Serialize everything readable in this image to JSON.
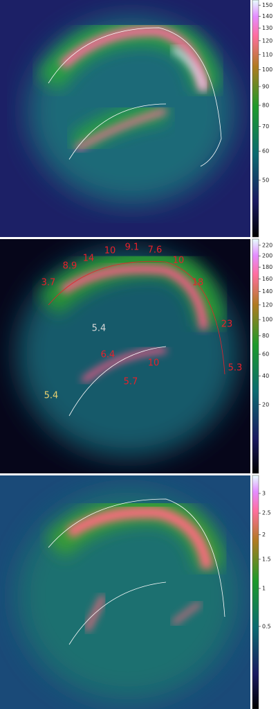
{
  "panels": [
    {
      "colorbar": {
        "scale": "log",
        "lim": [
          35,
          155
        ],
        "ticks": [
          150,
          140,
          130,
          120,
          110,
          100,
          90,
          80,
          70,
          60,
          50
        ]
      }
    },
    {
      "colorbar": {
        "scale": "sqrt",
        "lim": [
          0,
          232
        ],
        "ticks": [
          220,
          200,
          180,
          160,
          140,
          120,
          100,
          80,
          60,
          40,
          20
        ]
      },
      "annotations": [
        {
          "text": "3.7",
          "color": "#e8202a"
        },
        {
          "text": "8.9",
          "color": "#e8202a"
        },
        {
          "text": "14",
          "color": "#e8202a"
        },
        {
          "text": "10",
          "color": "#e8202a"
        },
        {
          "text": "9.1",
          "color": "#e8202a"
        },
        {
          "text": "7.6",
          "color": "#e8202a"
        },
        {
          "text": "10",
          "color": "#e8202a"
        },
        {
          "text": "18",
          "color": "#e8202a"
        },
        {
          "text": "23",
          "color": "#e8202a"
        },
        {
          "text": "5.3",
          "color": "#e8202a"
        },
        {
          "text": "10",
          "color": "#e8202a"
        },
        {
          "text": "5.7",
          "color": "#e8202a"
        },
        {
          "text": "6.4",
          "color": "#e8202a"
        },
        {
          "text": "5.4",
          "color": "#d8d8d8"
        },
        {
          "text": "5.4",
          "color": "#e8d070"
        }
      ]
    },
    {
      "colorbar": {
        "scale": "sqrt",
        "lim": [
          0.005,
          3.5
        ],
        "ticks": [
          3,
          2.5,
          2,
          1.5,
          1,
          0.5
        ]
      }
    }
  ]
}
